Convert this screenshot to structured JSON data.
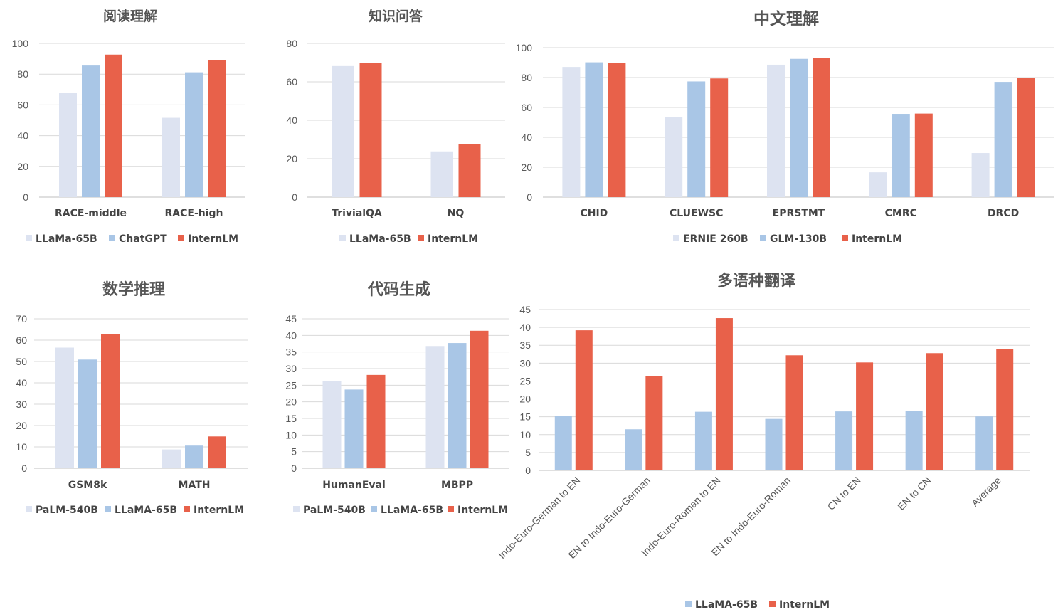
{
  "colors": {
    "light": "#dde3f1",
    "blue": "#a9c6e6",
    "red": "#e8614a"
  },
  "chart_data": [
    {
      "type": "bar",
      "title": "阅读理解",
      "categories": [
        "RACE-middle",
        "RACE-high"
      ],
      "ylim": [
        0,
        100
      ],
      "ystep": 20,
      "series": [
        {
          "name": "LLaMa-65B",
          "color": "light",
          "values": [
            67.9,
            51.6
          ]
        },
        {
          "name": "ChatGPT",
          "color": "blue",
          "values": [
            85.6,
            81.2
          ]
        },
        {
          "name": "InternLM",
          "color": "red",
          "values": [
            92.7,
            88.9
          ]
        }
      ]
    },
    {
      "type": "bar",
      "title": "知识问答",
      "categories": [
        "TrivialQA",
        "NQ"
      ],
      "ylim": [
        0,
        80
      ],
      "ystep": 20,
      "series": [
        {
          "name": "LLaMa-65B",
          "color": "light",
          "values": [
            68.2,
            23.8
          ]
        },
        {
          "name": "InternLM",
          "color": "red",
          "values": [
            69.8,
            27.6
          ]
        }
      ]
    },
    {
      "type": "bar",
      "title": "中文理解",
      "categories": [
        "CHID",
        "CLUEWSC",
        "EPRSTMT",
        "CMRC",
        "DRCD"
      ],
      "ylim": [
        0,
        100
      ],
      "ystep": 20,
      "series": [
        {
          "name": "ERNIE 260B",
          "color": "light",
          "values": [
            87.1,
            53.5,
            88.6,
            16.6,
            29.5
          ]
        },
        {
          "name": "GLM-130B",
          "color": "blue",
          "values": [
            90.2,
            77.4,
            92.5,
            55.7,
            77.1
          ]
        },
        {
          "name": "InternLM",
          "color": "red",
          "values": [
            90.0,
            79.4,
            93.1,
            55.9,
            79.8
          ]
        }
      ]
    },
    {
      "type": "bar",
      "title": "数学推理",
      "categories": [
        "GSM8k",
        "MATH"
      ],
      "ylim": [
        0,
        70
      ],
      "ystep": 10,
      "series": [
        {
          "name": "PaLM-540B",
          "color": "light",
          "values": [
            56.5,
            8.8
          ]
        },
        {
          "name": "LLaMA-65B",
          "color": "blue",
          "values": [
            50.9,
            10.6
          ]
        },
        {
          "name": "InternLM",
          "color": "red",
          "values": [
            62.9,
            14.9
          ]
        }
      ]
    },
    {
      "type": "bar",
      "title": "代码生成",
      "categories": [
        "HumanEval",
        "MBPP"
      ],
      "ylim": [
        0,
        45
      ],
      "ystep": 5,
      "series": [
        {
          "name": "PaLM-540B",
          "color": "light",
          "values": [
            26.2,
            36.8
          ]
        },
        {
          "name": "LLaMA-65B",
          "color": "blue",
          "values": [
            23.7,
            37.7
          ]
        },
        {
          "name": "InternLM",
          "color": "red",
          "values": [
            28.1,
            41.4
          ]
        }
      ]
    },
    {
      "type": "bar",
      "title": "多语种翻译",
      "categories": [
        "Indo-Euro-German to EN",
        "EN to Indo-Euro-German",
        "Indo-Euro-Roman to EN",
        "EN to Indo-Euro-Roman",
        "CN to EN",
        "EN to CN",
        "Average"
      ],
      "ylim": [
        0,
        45
      ],
      "ystep": 5,
      "series": [
        {
          "name": "LLaMA-65B",
          "color": "blue",
          "values": [
            15.3,
            11.5,
            16.4,
            14.4,
            16.5,
            16.6,
            15.1
          ]
        },
        {
          "name": "InternLM",
          "color": "red",
          "values": [
            39.2,
            26.4,
            42.6,
            32.2,
            30.2,
            32.8,
            33.9
          ]
        }
      ]
    }
  ]
}
